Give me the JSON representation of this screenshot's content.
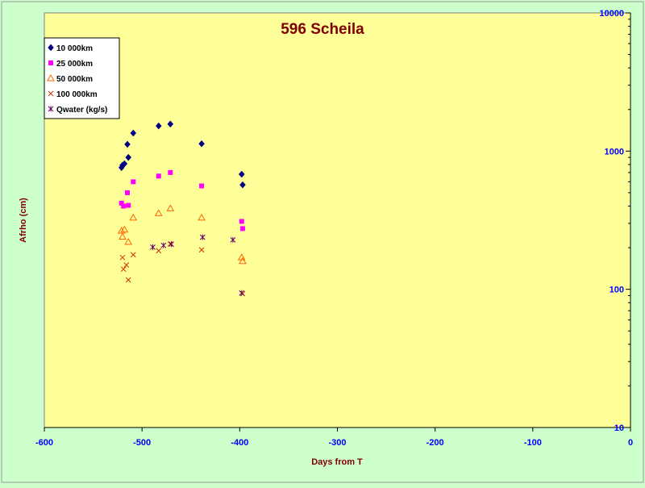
{
  "chart_data": {
    "type": "scatter",
    "title": "596 Scheila",
    "xlabel": "Days from T",
    "ylabel": "Afrho (cm)",
    "xlim": [
      -600,
      0
    ],
    "ylim": [
      10,
      10000
    ],
    "y_scale": "log",
    "x_ticks": [
      "-600",
      "-500",
      "-400",
      "-300",
      "-200",
      "-100",
      "0"
    ],
    "y_ticks": [
      "10",
      "100",
      "1000",
      "10000"
    ],
    "legend_position": "top-left",
    "colors": {
      "chart_background": "#ccffcc",
      "plot_background": "#ffff99",
      "title": "#800000",
      "axis_labels": "#800000",
      "tick_labels": "#0000ff"
    },
    "series": [
      {
        "name": "10 000km",
        "marker": "diamond",
        "color": "#000080",
        "points": [
          [
            -521,
            760
          ],
          [
            -520,
            790
          ],
          [
            -518,
            810
          ],
          [
            -515,
            1120
          ],
          [
            -514,
            900
          ],
          [
            -509,
            1350
          ],
          [
            -483,
            1520
          ],
          [
            -471,
            1570
          ],
          [
            -439,
            1130
          ],
          [
            -398,
            680
          ],
          [
            -397,
            570
          ]
        ]
      },
      {
        "name": "25 000km",
        "marker": "square",
        "color": "#ff00ff",
        "points": [
          [
            -521,
            420
          ],
          [
            -519,
            400
          ],
          [
            -515,
            500
          ],
          [
            -514,
            405
          ],
          [
            -509,
            600
          ],
          [
            -483,
            660
          ],
          [
            -471,
            700
          ],
          [
            -439,
            560
          ],
          [
            -398,
            310
          ],
          [
            -397,
            275
          ]
        ]
      },
      {
        "name": "50 000km",
        "marker": "triangle",
        "color": "#ff6600",
        "points": [
          [
            -521,
            265
          ],
          [
            -520,
            240
          ],
          [
            -518,
            270
          ],
          [
            -514,
            220
          ],
          [
            -509,
            330
          ],
          [
            -483,
            355
          ],
          [
            -471,
            385
          ],
          [
            -439,
            330
          ],
          [
            -398,
            170
          ],
          [
            -397,
            160
          ]
        ]
      },
      {
        "name": "100 000km",
        "marker": "x",
        "color": "#cc3300",
        "points": [
          [
            -520,
            170
          ],
          [
            -519,
            140
          ],
          [
            -516,
            150
          ],
          [
            -514,
            117
          ],
          [
            -509,
            178
          ],
          [
            -483,
            190
          ],
          [
            -471,
            213
          ],
          [
            -439,
            193
          ],
          [
            -397,
            93
          ]
        ]
      },
      {
        "name": "Qwater (kg/s)",
        "marker": "star",
        "color": "#660066",
        "points": [
          [
            -489,
            202
          ],
          [
            -478,
            208
          ],
          [
            -470,
            212
          ],
          [
            -438,
            238
          ],
          [
            -407,
            228
          ],
          [
            -398,
            94
          ]
        ]
      }
    ]
  }
}
